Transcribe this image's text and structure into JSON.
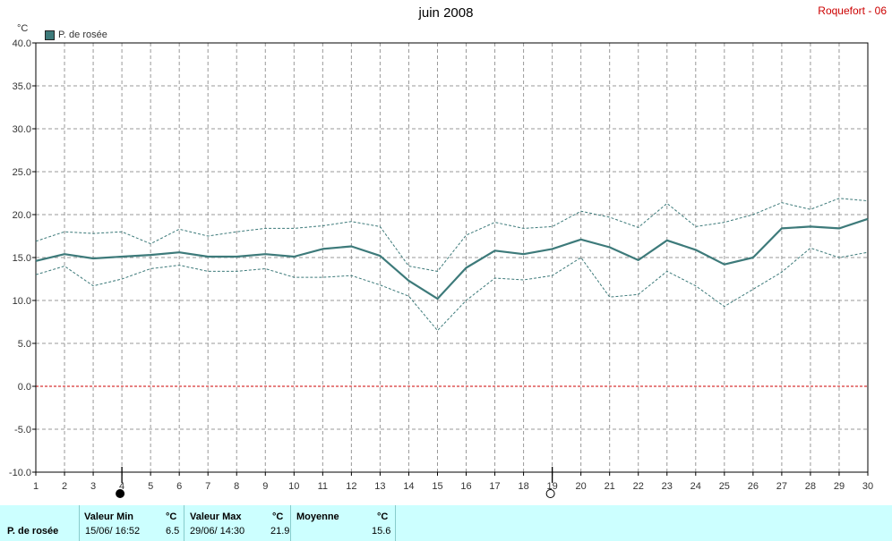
{
  "title": "juin 2008",
  "station": "Roquefort - 06",
  "unit": "°C",
  "legend_label": "P. de rosée",
  "colors": {
    "main": "#3d7a7a",
    "grid": "#999999",
    "zero": "#cc0000",
    "stats_bg": "#ccffff"
  },
  "moon_phases": [
    {
      "day": 4,
      "phase": "new-moon"
    },
    {
      "day": 19,
      "phase": "full-moon"
    }
  ],
  "stats": {
    "series_label": "P. de rosée",
    "min_header": "Valeur Min",
    "min_unit": "°C",
    "min_when": "15/06/  16:52",
    "min_value": "6.5",
    "max_header": "Valeur Max",
    "max_unit": "°C",
    "max_when": "29/06/  14:30",
    "max_value": "21.9",
    "avg_header": "Moyenne",
    "avg_unit": "°C",
    "avg_value": "15.6"
  },
  "chart_data": {
    "type": "line",
    "title": "juin 2008",
    "ylabel": "°C",
    "ylim": [
      -10,
      40
    ],
    "yticks": [
      "-10.0",
      "-5.0",
      "0.0",
      "5.0",
      "10.0",
      "15.0",
      "20.0",
      "25.0",
      "30.0",
      "35.0",
      "40.0"
    ],
    "x": [
      1,
      2,
      3,
      4,
      5,
      6,
      7,
      8,
      9,
      10,
      11,
      12,
      13,
      14,
      15,
      16,
      17,
      18,
      19,
      20,
      21,
      22,
      23,
      24,
      25,
      26,
      27,
      28,
      29,
      30
    ],
    "grid": true,
    "series": [
      {
        "name": "P. de rosée",
        "role": "mean",
        "values": [
          14.6,
          15.4,
          14.9,
          15.1,
          15.3,
          15.6,
          15.1,
          15.1,
          15.4,
          15.1,
          16.0,
          16.3,
          15.2,
          12.3,
          10.2,
          13.8,
          15.8,
          15.4,
          16.0,
          17.1,
          16.2,
          14.7,
          17.0,
          15.9,
          14.2,
          15.0,
          18.4,
          18.6,
          18.4,
          19.5
        ]
      },
      {
        "role": "max",
        "values": [
          16.9,
          18.0,
          17.8,
          18.0,
          16.6,
          18.3,
          17.5,
          18.0,
          18.4,
          18.4,
          18.7,
          19.2,
          18.6,
          14.0,
          13.4,
          17.6,
          19.1,
          18.4,
          18.6,
          20.4,
          19.7,
          18.5,
          21.3,
          18.6,
          19.1,
          20.0,
          21.4,
          20.6,
          21.9,
          21.6
        ]
      },
      {
        "role": "min",
        "values": [
          13.0,
          14.0,
          11.7,
          12.5,
          13.7,
          14.1,
          13.4,
          13.4,
          13.7,
          12.7,
          12.7,
          12.9,
          11.8,
          10.5,
          6.5,
          10.0,
          12.6,
          12.4,
          12.9,
          15.0,
          10.4,
          10.7,
          13.4,
          11.7,
          9.3,
          11.3,
          13.3,
          16.1,
          15.0,
          15.6
        ]
      }
    ]
  }
}
